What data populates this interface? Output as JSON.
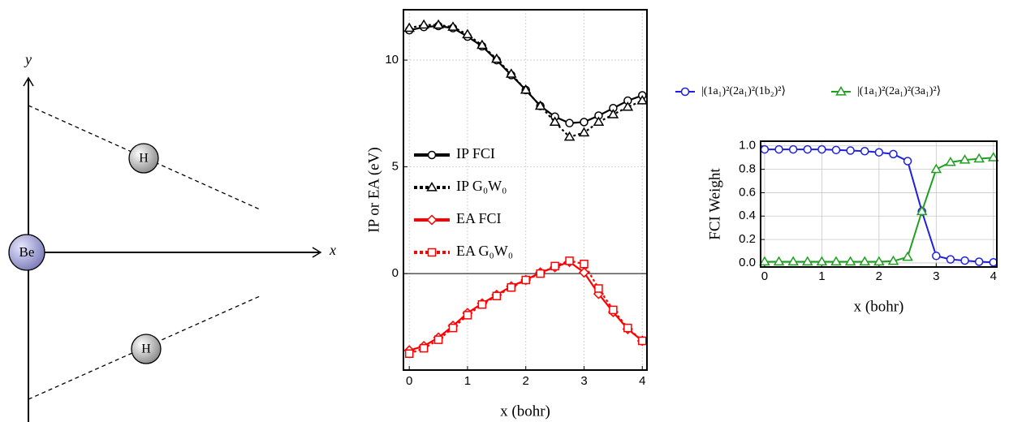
{
  "diagram": {
    "axis_y": "y",
    "axis_x": "x",
    "atoms": [
      "Be",
      "H",
      "H"
    ]
  },
  "chart_data": [
    {
      "type": "line",
      "xlabel": "x (bohr)",
      "ylabel": "IP or EA (eV)",
      "x": [
        0,
        0.25,
        0.5,
        0.75,
        1,
        1.25,
        1.5,
        1.75,
        2,
        2.25,
        2.5,
        2.75,
        3,
        3.25,
        3.5,
        3.75,
        4
      ],
      "xlim": [
        -0.1,
        4.08
      ],
      "ylim": [
        -4.52,
        12.36
      ],
      "xticks": [
        0,
        1,
        2,
        3,
        4
      ],
      "yticks": [
        0,
        5,
        10
      ],
      "grid": true,
      "zero_line": true,
      "legend": "left",
      "series": [
        {
          "name": "IP FCI",
          "color": "#000000",
          "marker": "circle",
          "dash": "solid",
          "values": [
            11.4,
            11.55,
            11.6,
            11.5,
            11.1,
            10.65,
            10.0,
            9.3,
            8.6,
            7.85,
            7.35,
            7.05,
            7.1,
            7.4,
            7.75,
            8.1,
            8.35
          ]
        },
        {
          "name": "IP G₀W₀",
          "color": "#000000",
          "marker": "triangle",
          "dash": "dotted",
          "values": [
            11.5,
            11.65,
            11.65,
            11.55,
            11.2,
            10.7,
            10.05,
            9.35,
            8.6,
            7.85,
            7.1,
            6.4,
            6.6,
            7.1,
            7.45,
            7.8,
            8.1
          ]
        },
        {
          "name": "EA FCI",
          "color": "#ff0000",
          "marker": "diamond",
          "dash": "solid",
          "values": [
            -3.6,
            -3.4,
            -3.0,
            -2.45,
            -1.85,
            -1.4,
            -1.0,
            -0.6,
            -0.3,
            0.05,
            0.3,
            0.55,
            0.05,
            -0.95,
            -1.8,
            -2.6,
            -3.15
          ]
        },
        {
          "name": "EA G₀W₀",
          "color": "#ff0000",
          "marker": "square",
          "dash": "dotted",
          "values": [
            -3.75,
            -3.5,
            -3.1,
            -2.55,
            -1.95,
            -1.45,
            -1.05,
            -0.65,
            -0.3,
            0.0,
            0.35,
            0.6,
            0.45,
            -0.7,
            -1.7,
            -2.55,
            -3.15
          ]
        }
      ]
    },
    {
      "type": "line",
      "xlabel": "x (bohr)",
      "ylabel": "FCI Weight",
      "x": [
        0,
        0.25,
        0.5,
        0.75,
        1,
        1.25,
        1.5,
        1.75,
        2,
        2.25,
        2.5,
        2.75,
        3,
        3.25,
        3.5,
        3.75,
        4
      ],
      "xlim": [
        -0.07,
        4.06
      ],
      "ylim": [
        -0.035,
        1.04
      ],
      "xticks": [
        0,
        1,
        2,
        3,
        4
      ],
      "yticks": [
        {
          "value": 0,
          "label": "0.0"
        },
        0.2,
        0.4,
        0.6,
        0.8,
        {
          "value": 1,
          "label": "1.0"
        }
      ],
      "grid": true,
      "zero_line": false,
      "legend": "top",
      "series": [
        {
          "name": "|(1a₁)²(2a₁)²(1b₂)²⟩",
          "color": "#1f1fdd",
          "marker": "circle",
          "dash": "solid",
          "values": [
            0.97,
            0.97,
            0.97,
            0.97,
            0.97,
            0.965,
            0.96,
            0.955,
            0.945,
            0.93,
            0.87,
            0.44,
            0.06,
            0.03,
            0.02,
            0.01,
            0.005
          ]
        },
        {
          "name": "|(1a₁)²(2a₁)²(3a₁)²⟩",
          "color": "#1f9f1f",
          "marker": "triangle",
          "dash": "solid",
          "values": [
            0.01,
            0.01,
            0.01,
            0.01,
            0.01,
            0.01,
            0.01,
            0.01,
            0.01,
            0.015,
            0.05,
            0.44,
            0.8,
            0.86,
            0.88,
            0.89,
            0.9
          ]
        }
      ]
    }
  ]
}
